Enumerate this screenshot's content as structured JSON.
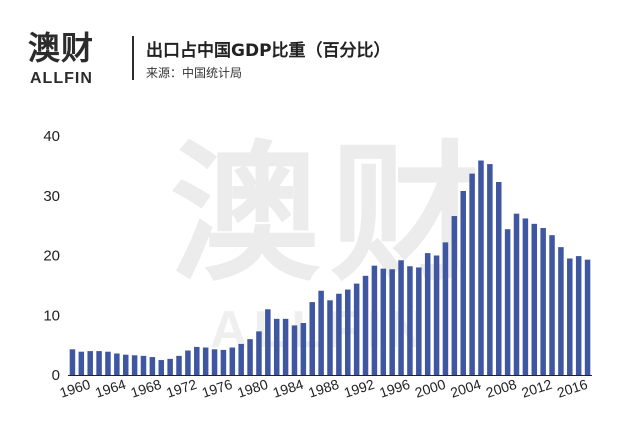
{
  "header": {
    "logo_cn": "澳财",
    "logo_en": "ALLFIN",
    "title": "出口占中国GDP比重（百分比）",
    "source": "来源：中国统计局"
  },
  "watermark": {
    "cn": "澳财",
    "en": "ALLFIN"
  },
  "colors": {
    "bar": "#3f57a0",
    "axis": "#222222"
  },
  "chart_data": {
    "type": "bar",
    "title": "出口占中国GDP比重（百分比）",
    "xlabel": "",
    "ylabel": "",
    "ylim": [
      0,
      40
    ],
    "yticks": [
      0,
      10,
      20,
      30,
      40
    ],
    "xtick_labels": [
      "1960",
      "1964",
      "1968",
      "1972",
      "1976",
      "1980",
      "1984",
      "1988",
      "1992",
      "1996",
      "2000",
      "2004",
      "2008",
      "2012",
      "2016"
    ],
    "grid": false,
    "categories": [
      1960,
      1961,
      1962,
      1963,
      1964,
      1965,
      1966,
      1967,
      1968,
      1969,
      1970,
      1971,
      1972,
      1973,
      1974,
      1975,
      1976,
      1977,
      1978,
      1979,
      1980,
      1981,
      1982,
      1983,
      1984,
      1985,
      1986,
      1987,
      1988,
      1989,
      1990,
      1991,
      1992,
      1993,
      1994,
      1995,
      1996,
      1997,
      1998,
      1999,
      2000,
      2001,
      2002,
      2003,
      2004,
      2005,
      2006,
      2007,
      2008,
      2009,
      2010,
      2011,
      2012,
      2013,
      2014,
      2015,
      2016,
      2017,
      2018
    ],
    "values": [
      4.3,
      3.9,
      4.0,
      4.0,
      3.9,
      3.6,
      3.4,
      3.3,
      3.2,
      3.0,
      2.5,
      2.7,
      3.2,
      4.1,
      4.7,
      4.6,
      4.3,
      4.2,
      4.6,
      5.2,
      6.0,
      7.3,
      11.0,
      9.4,
      9.4,
      8.3,
      8.7,
      12.2,
      14.1,
      12.5,
      13.6,
      14.3,
      15.3,
      16.6,
      18.3,
      17.8,
      17.7,
      19.2,
      18.2,
      18.0,
      20.4,
      20.0,
      22.2,
      26.6,
      30.8,
      33.7,
      35.9,
      35.3,
      32.3,
      24.4,
      27.0,
      26.2,
      25.3,
      24.6,
      23.4,
      21.4,
      19.5,
      19.9,
      19.3
    ]
  }
}
